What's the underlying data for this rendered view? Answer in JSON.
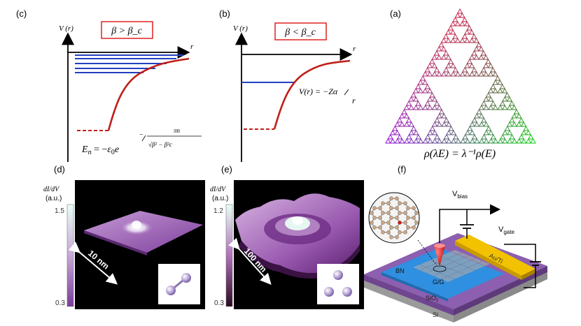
{
  "panel_c": {
    "label": "(c)",
    "y_axis": "V (r)",
    "x_axis": "r",
    "condition": "β > β_c",
    "formula": "E_n = −ε₀e^(−πn/√(β²−β_c²))"
  },
  "panel_b": {
    "label": "(b)",
    "y_axis": "V (r)",
    "x_axis": "r",
    "condition": "β < β_c",
    "formula": "V(r) = −Zα/r"
  },
  "panel_a": {
    "label": "(a)",
    "formula": "ρ(λE) = λ⁻¹ρ(E)"
  },
  "panel_d": {
    "label": "(d)",
    "colorbar_title": "dI/dV",
    "colorbar_unit": "(a.u.)",
    "colorbar_max": "1.5",
    "colorbar_min": "0.3",
    "scale_label": "10 nm"
  },
  "panel_e": {
    "label": "(e)",
    "colorbar_title": "dI/dV",
    "colorbar_unit": "(a.u.)",
    "colorbar_max": "1.2",
    "colorbar_min": "0.3",
    "scale_label": "100 nm"
  },
  "panel_f": {
    "label": "(f)",
    "v_bias": "V",
    "v_bias_sub": "bias",
    "v_gate": "V",
    "v_gate_sub": "gate",
    "layer_bn": "BN",
    "layer_sio2": "SiO",
    "layer_sio2_sub": "2",
    "layer_si": "Si",
    "sample": "G/G",
    "electrode": "Au/Ti"
  },
  "colors": {
    "axis": "#000000",
    "energy_levels": "#2040c0",
    "potential": "#c0201a",
    "box_border": "#e02020",
    "stm_purple": "#9b5fb0",
    "stm_dark": "#2a2a2a",
    "bn_blue": "#2f8fe0",
    "gold": "#f2c200"
  }
}
